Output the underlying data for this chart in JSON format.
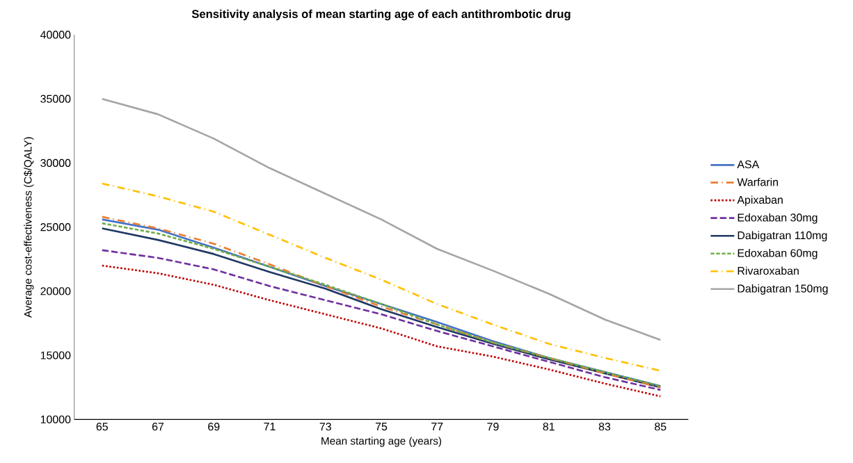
{
  "chart_data": {
    "type": "line",
    "title": "Sensitivity analysis of mean starting age of each antithrombotic drug",
    "xlabel": "Mean starting age (years)",
    "ylabel": "Average cost-effectiveness (C$/QALY)",
    "x": [
      65,
      67,
      69,
      71,
      73,
      75,
      77,
      79,
      81,
      83,
      85
    ],
    "xlim": [
      64,
      86
    ],
    "xticks": [
      65,
      67,
      69,
      71,
      73,
      75,
      77,
      79,
      81,
      83,
      85
    ],
    "ylim": [
      10000,
      40000
    ],
    "yticks": [
      10000,
      15000,
      20000,
      25000,
      30000,
      35000,
      40000
    ],
    "grid": false,
    "legend": "right",
    "marker": "none",
    "series": [
      {
        "name": "ASA",
        "color": "#4472c4",
        "line_style": "solid",
        "values": [
          25600,
          24800,
          23400,
          21900,
          20400,
          19000,
          17600,
          16100,
          14800,
          13700,
          12600
        ]
      },
      {
        "name": "Warfarin",
        "color": "#ed7d31",
        "line_style": "long dash dot",
        "values": [
          25800,
          24900,
          23700,
          22100,
          20400,
          18800,
          17400,
          16000,
          14800,
          13600,
          12500
        ]
      },
      {
        "name": "Apixaban",
        "color": "#c00000",
        "line_style": "dotted",
        "values": [
          22000,
          21400,
          20500,
          19300,
          18200,
          17100,
          15700,
          14900,
          13900,
          12800,
          11800
        ]
      },
      {
        "name": "Edoxaban 30mg",
        "color": "#7030a0",
        "line_style": "long dashed",
        "values": [
          23200,
          22600,
          21700,
          20400,
          19300,
          18200,
          16900,
          15700,
          14500,
          13300,
          12300
        ]
      },
      {
        "name": "Dabigatran 110mg",
        "color": "#203864",
        "line_style": "solid",
        "values": [
          24900,
          24000,
          22900,
          21500,
          20200,
          18600,
          17200,
          15900,
          14700,
          13600,
          12500
        ]
      },
      {
        "name": "Edoxaban 60mg",
        "color": "#70ad47",
        "line_style": "dashed",
        "values": [
          25300,
          24500,
          23300,
          21900,
          20500,
          19000,
          17400,
          16000,
          14800,
          13700,
          12600
        ]
      },
      {
        "name": "Rivaroxaban",
        "color": "#ffc000",
        "line_style": "long dash dot",
        "values": [
          28400,
          27400,
          26200,
          24400,
          22600,
          20900,
          19000,
          17400,
          15900,
          14800,
          13800
        ]
      },
      {
        "name": "Dabigatran 150mg",
        "color": "#a5a5a5",
        "line_style": "solid",
        "values": [
          35000,
          33800,
          31900,
          29600,
          27600,
          25600,
          23300,
          21600,
          19800,
          17800,
          16200
        ]
      }
    ]
  }
}
